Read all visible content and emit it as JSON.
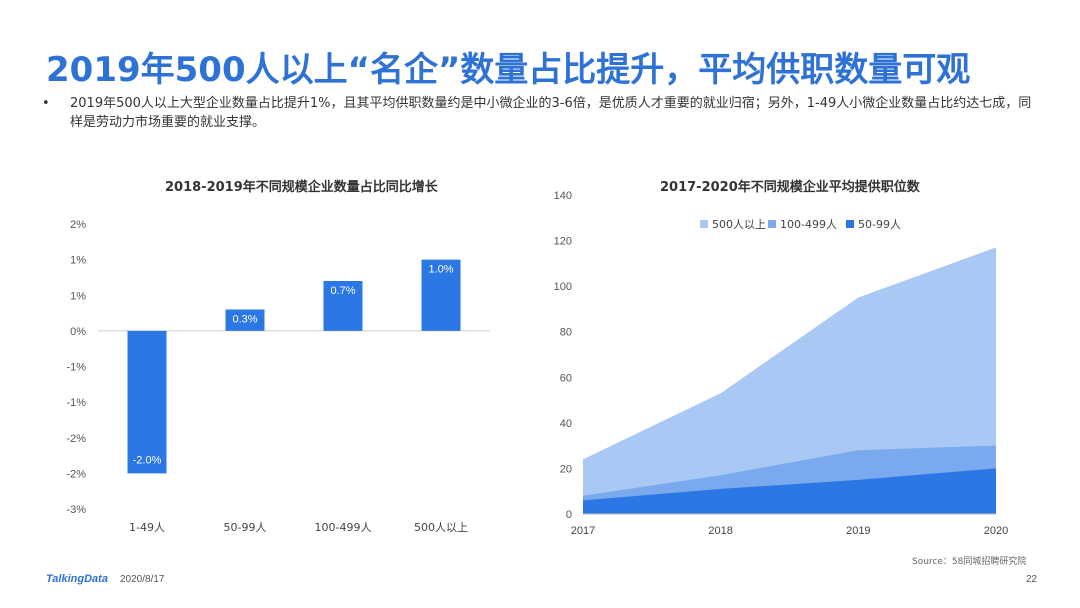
{
  "page": {
    "title": "2019年500人以上“名企”数量占比提升，平均供职数量可观",
    "bullet_marker": "•",
    "bullet_text": "2019年500人以上大型企业数量占比提升1%，且其平均供职数量约是中小微企业的3-6倍，是优质人才重要的就业归宿；另外，1-49人小微企业数量占比约达七成，同样是劳动力市场重要的就业支撑。",
    "source": "Source：58同城招聘研究院",
    "footer_logo": "TalkingData",
    "footer_date": "2020/8/17",
    "page_number": "22"
  },
  "colors": {
    "title": "#2f72d6",
    "bar": "#2b78e4",
    "area_500plus": "#a9c8f3",
    "area_100_499": "#7aa9ee",
    "area_50_99": "#2b78e4"
  },
  "chart_data": [
    {
      "type": "bar",
      "title": "2018-2019年不同规模企业数量占比同比增长",
      "categories": [
        "1-49人",
        "50-99人",
        "100-499人",
        "500人以上"
      ],
      "values": [
        -2.0,
        0.3,
        0.7,
        1.0
      ],
      "data_labels": [
        "-2.0%",
        "0.3%",
        "0.7%",
        "1.0%"
      ],
      "ylim": [
        -2.5,
        1.5
      ],
      "yticks": [
        1.5,
        1.0,
        0.5,
        0.0,
        -0.5,
        -1.0,
        -1.5,
        -2.0,
        -2.5
      ],
      "ytick_labels": [
        "2%",
        "1%",
        "1%",
        "0%",
        "-1%",
        "-1%",
        "-2%",
        "-2%",
        "-3%"
      ],
      "grid": false,
      "legend": "none"
    },
    {
      "type": "area",
      "title": "2017-2020年不同规模企业平均提供职位数",
      "x": [
        "2017",
        "2018",
        "2019",
        "2020"
      ],
      "series": [
        {
          "name": "500人以上",
          "values": [
            24,
            53,
            95,
            117
          ]
        },
        {
          "name": "100-499人",
          "values": [
            8,
            17,
            28,
            30
          ]
        },
        {
          "name": "50-99人",
          "values": [
            6,
            11,
            15,
            20
          ]
        }
      ],
      "ylim": [
        0,
        140
      ],
      "yticks": [
        0,
        20,
        40,
        60,
        80,
        100,
        120,
        140
      ],
      "grid": false,
      "legend": "top"
    }
  ]
}
